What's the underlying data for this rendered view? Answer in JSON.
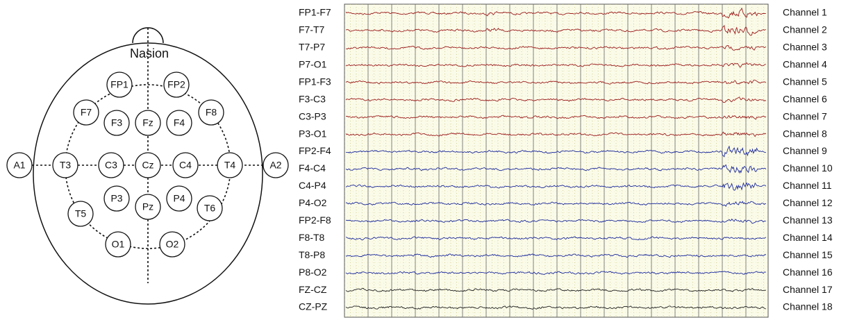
{
  "head": {
    "nasion_label": "Nasion"
  },
  "electrodes": [
    {
      "label": "FP1"
    },
    {
      "label": "FP2"
    },
    {
      "label": "F7"
    },
    {
      "label": "F3"
    },
    {
      "label": "Fz"
    },
    {
      "label": "F4"
    },
    {
      "label": "F8"
    },
    {
      "label": "A1"
    },
    {
      "label": "T3"
    },
    {
      "label": "C3"
    },
    {
      "label": "Cz"
    },
    {
      "label": "C4"
    },
    {
      "label": "T4"
    },
    {
      "label": "A2"
    },
    {
      "label": "P3"
    },
    {
      "label": "Pz"
    },
    {
      "label": "P4"
    },
    {
      "label": "T5"
    },
    {
      "label": "T6"
    },
    {
      "label": "O1"
    },
    {
      "label": "O2"
    }
  ],
  "channels": [
    {
      "montage": "FP1-F7",
      "name": "Channel 1",
      "color": "#9b1c1c"
    },
    {
      "montage": "F7-T7",
      "name": "Channel 2",
      "color": "#9b1c1c"
    },
    {
      "montage": "T7-P7",
      "name": "Channel 3",
      "color": "#9b1c1c"
    },
    {
      "montage": "P7-O1",
      "name": "Channel 4",
      "color": "#9b1c1c"
    },
    {
      "montage": "FP1-F3",
      "name": "Channel 5",
      "color": "#9b1c1c"
    },
    {
      "montage": "F3-C3",
      "name": "Channel 6",
      "color": "#9b1c1c"
    },
    {
      "montage": "C3-P3",
      "name": "Channel 7",
      "color": "#9b1c1c"
    },
    {
      "montage": "P3-O1",
      "name": "Channel 8",
      "color": "#9b1c1c"
    },
    {
      "montage": "FP2-F4",
      "name": "Channel 9",
      "color": "#1c2a9b"
    },
    {
      "montage": "F4-C4",
      "name": "Channel 10",
      "color": "#1c2a9b"
    },
    {
      "montage": "C4-P4",
      "name": "Channel 11",
      "color": "#1c2a9b"
    },
    {
      "montage": "P4-O2",
      "name": "Channel 12",
      "color": "#1c2a9b"
    },
    {
      "montage": "FP2-F8",
      "name": "Channel 13",
      "color": "#1c2a9b"
    },
    {
      "montage": "F8-T8",
      "name": "Channel 14",
      "color": "#1c2a9b"
    },
    {
      "montage": "T8-P8",
      "name": "Channel 15",
      "color": "#1c2a9b"
    },
    {
      "montage": "P8-O2",
      "name": "Channel 16",
      "color": "#1c2a9b"
    },
    {
      "montage": "FZ-CZ",
      "name": "Channel 17",
      "color": "#222222"
    },
    {
      "montage": "CZ-PZ",
      "name": "Channel 18",
      "color": "#222222"
    }
  ]
}
